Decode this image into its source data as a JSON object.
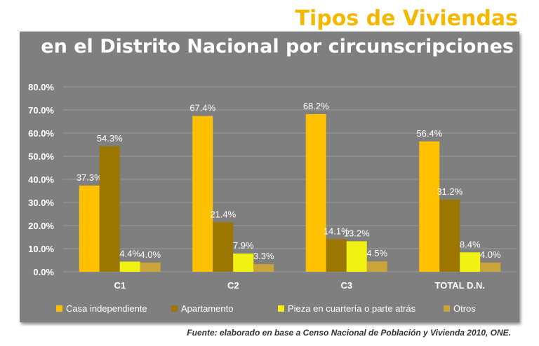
{
  "header": {
    "title": "Tipos de Viviendas",
    "subtitle": "en el Distrito Nacional por circunscripciones"
  },
  "footer": {
    "source": "Fuente: elaborado en base a Censo Nacional de Población y Vivienda 2010, ONE."
  },
  "colors": {
    "title": "#f5b800",
    "panel": "#7f7f7f",
    "series": [
      "#ffc000",
      "#9c7700",
      "#f2f212",
      "#c9a438"
    ]
  },
  "chart_data": {
    "type": "bar",
    "title": "Tipos de Viviendas",
    "subtitle": "en el Distrito Nacional por circunscripciones",
    "categories": [
      "C1",
      "C2",
      "C3",
      "TOTAL D.N."
    ],
    "series": [
      {
        "name": "Casa independiente",
        "values": [
          37.3,
          67.4,
          68.2,
          56.4
        ],
        "labels": [
          "37.3%",
          "67.4%",
          "68.2%",
          "56.4%"
        ]
      },
      {
        "name": "Apartamento",
        "values": [
          54.3,
          21.4,
          14.1,
          31.2
        ],
        "labels": [
          "54.3%",
          "21.4%",
          "14.1%",
          "31.2%"
        ]
      },
      {
        "name": "Pieza en cuartería o parte atrás",
        "values": [
          4.4,
          7.9,
          13.2,
          8.4
        ],
        "labels": [
          "4.4%",
          "7.9%",
          "13.2%",
          "8.4%"
        ]
      },
      {
        "name": "Otros",
        "values": [
          4.0,
          3.3,
          4.5,
          4.0
        ],
        "labels": [
          "4.0%",
          "3.3%",
          "4.5%",
          "4.0%"
        ]
      }
    ],
    "ylim": [
      0,
      80
    ],
    "yticks": [
      0,
      10,
      20,
      30,
      40,
      50,
      60,
      70,
      80
    ],
    "ytick_labels": [
      "0.0%",
      "10.0%",
      "20.0%",
      "30.0%",
      "40.0%",
      "50.0%",
      "60.0%",
      "70.0%",
      "80.0%"
    ],
    "grid": true,
    "legend": "bottom"
  }
}
